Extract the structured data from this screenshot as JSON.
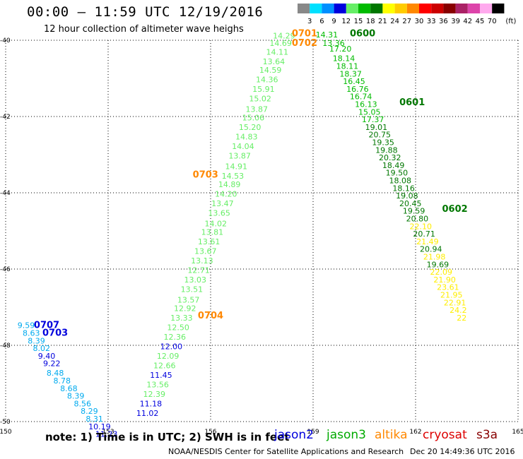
{
  "header": {
    "title": "00:00 – 11:59 UTC 12/19/2016",
    "subtitle": "12 hour collection of altimeter wave heighs"
  },
  "legend": {
    "unit": "(ft)",
    "bins": [
      {
        "label": "3",
        "color": "#888888"
      },
      {
        "label": "6",
        "color": "#00e0ff"
      },
      {
        "label": "9",
        "color": "#0090ff"
      },
      {
        "label": "12",
        "color": "#0000dd"
      },
      {
        "label": "15",
        "color": "#66ee66"
      },
      {
        "label": "18",
        "color": "#00bb00"
      },
      {
        "label": "21",
        "color": "#007700"
      },
      {
        "label": "24",
        "color": "#ffff00"
      },
      {
        "label": "27",
        "color": "#ffcc00"
      },
      {
        "label": "30",
        "color": "#ff8800"
      },
      {
        "label": "33",
        "color": "#ff0000"
      },
      {
        "label": "36",
        "color": "#cc0000"
      },
      {
        "label": "39",
        "color": "#880000"
      },
      {
        "label": "42",
        "color": "#aa2266"
      },
      {
        "label": "45",
        "color": "#dd44aa"
      },
      {
        "label": "70",
        "color": "#ffaaee"
      },
      {
        "label": "",
        "color": "#000000"
      }
    ]
  },
  "chart_data": {
    "type": "scatter",
    "xlim": [
      150,
      165
    ],
    "ylim": [
      -50,
      -40
    ],
    "xticks": [
      "150",
      "153",
      "156",
      "159",
      "162",
      "165"
    ],
    "yticks": [
      "-40",
      "-42",
      "-44",
      "-46",
      "-48",
      "-50"
    ],
    "grid": true,
    "time_labels": [
      {
        "text": "0701",
        "x": 158.75,
        "y": -39.9,
        "color": "#ff8800"
      },
      {
        "text": "0702",
        "x": 158.75,
        "y": -40.15,
        "color": "#ff8800"
      },
      {
        "text": "0703",
        "x": 155.85,
        "y": -43.6,
        "color": "#ff8800"
      },
      {
        "text": "0704",
        "x": 156.0,
        "y": -47.3,
        "color": "#ff8800"
      },
      {
        "text": "0600",
        "x": 160.45,
        "y": -39.9,
        "color": "#007700"
      },
      {
        "text": "0601",
        "x": 161.9,
        "y": -41.7,
        "color": "#007700"
      },
      {
        "text": "0602",
        "x": 163.15,
        "y": -44.5,
        "color": "#007700"
      },
      {
        "text": "0707",
        "x": 151.2,
        "y": -47.55,
        "color": "#0000dd"
      },
      {
        "text": "0703",
        "x": 151.45,
        "y": -47.75,
        "color": "#0000dd"
      }
    ],
    "series": [
      {
        "name": "jason3_west",
        "color": "#66ee66",
        "points": [
          {
            "x": 158.15,
            "y": -39.95,
            "v": "14.29"
          },
          {
            "x": 158.05,
            "y": -40.15,
            "v": "14.69"
          },
          {
            "x": 157.95,
            "y": -40.38,
            "v": "14.11"
          },
          {
            "x": 157.85,
            "y": -40.63,
            "v": "13.64"
          },
          {
            "x": 157.75,
            "y": -40.85,
            "v": "14.59"
          },
          {
            "x": 157.65,
            "y": -41.1,
            "v": "14.36"
          },
          {
            "x": 157.55,
            "y": -41.35,
            "v": "15.91"
          },
          {
            "x": 157.45,
            "y": -41.6,
            "v": "15.02"
          },
          {
            "x": 157.35,
            "y": -41.88,
            "v": "13.87"
          },
          {
            "x": 157.25,
            "y": -42.1,
            "v": "15.06"
          },
          {
            "x": 157.15,
            "y": -42.35,
            "v": "15.20"
          },
          {
            "x": 157.05,
            "y": -42.6,
            "v": "14.83"
          },
          {
            "x": 156.95,
            "y": -42.85,
            "v": "14.04"
          },
          {
            "x": 156.85,
            "y": -43.1,
            "v": "13.87"
          },
          {
            "x": 156.75,
            "y": -43.38,
            "v": "14.91"
          },
          {
            "x": 156.65,
            "y": -43.63,
            "v": "14.53"
          },
          {
            "x": 156.55,
            "y": -43.85,
            "v": "14.89"
          },
          {
            "x": 156.45,
            "y": -44.1,
            "v": "14.20"
          },
          {
            "x": 156.35,
            "y": -44.35,
            "v": "13.47"
          },
          {
            "x": 156.25,
            "y": -44.6,
            "v": "13.65"
          },
          {
            "x": 156.15,
            "y": -44.88,
            "v": "14.02"
          },
          {
            "x": 156.05,
            "y": -45.1,
            "v": "13.81"
          },
          {
            "x": 155.95,
            "y": -45.35,
            "v": "13.61"
          },
          {
            "x": 155.85,
            "y": -45.6,
            "v": "13.67"
          },
          {
            "x": 155.75,
            "y": -45.85,
            "v": "13.13"
          },
          {
            "x": 155.65,
            "y": -46.1,
            "v": "12.71"
          },
          {
            "x": 155.55,
            "y": -46.35,
            "v": "13.03"
          },
          {
            "x": 155.45,
            "y": -46.6,
            "v": "13.51"
          },
          {
            "x": 155.35,
            "y": -46.88,
            "v": "13.57"
          },
          {
            "x": 155.25,
            "y": -47.1,
            "v": "12.92"
          },
          {
            "x": 155.15,
            "y": -47.35,
            "v": "13.33"
          },
          {
            "x": 155.05,
            "y": -47.6,
            "v": "12.50"
          },
          {
            "x": 154.95,
            "y": -47.85,
            "v": "12.36"
          },
          {
            "x": 154.75,
            "y": -48.35,
            "v": "12.09"
          },
          {
            "x": 154.65,
            "y": -48.6,
            "v": "12.66"
          },
          {
            "x": 154.45,
            "y": -49.1,
            "v": "13.56"
          },
          {
            "x": 154.35,
            "y": -49.35,
            "v": "12.39"
          }
        ]
      },
      {
        "name": "jason2_west",
        "color": "#0000dd",
        "points": [
          {
            "x": 154.85,
            "y": -48.1,
            "v": "12.00"
          },
          {
            "x": 154.55,
            "y": -48.85,
            "v": "11.45"
          },
          {
            "x": 154.25,
            "y": -49.6,
            "v": "11.18"
          },
          {
            "x": 154.15,
            "y": -49.85,
            "v": "11.02"
          }
        ]
      },
      {
        "name": "jason3_east",
        "color": "#00bb00",
        "points": [
          {
            "x": 159.4,
            "y": -39.93,
            "v": "14.31"
          },
          {
            "x": 159.6,
            "y": -40.15,
            "v": "13.36"
          },
          {
            "x": 159.8,
            "y": -40.3,
            "v": "17.20"
          },
          {
            "x": 159.9,
            "y": -40.55,
            "v": "18.14"
          },
          {
            "x": 160.0,
            "y": -40.75,
            "v": "18.11"
          },
          {
            "x": 160.1,
            "y": -40.95,
            "v": "18.37"
          },
          {
            "x": 160.2,
            "y": -41.15,
            "v": "16.45"
          },
          {
            "x": 160.3,
            "y": -41.35,
            "v": "16.76"
          },
          {
            "x": 160.4,
            "y": -41.55,
            "v": "16.74"
          },
          {
            "x": 160.55,
            "y": -41.75,
            "v": "16.13"
          },
          {
            "x": 160.65,
            "y": -41.95,
            "v": "15.05"
          },
          {
            "x": 160.75,
            "y": -42.15,
            "v": "17.37"
          }
        ]
      },
      {
        "name": "jason3_east_dark",
        "color": "#007700",
        "points": [
          {
            "x": 160.85,
            "y": -42.35,
            "v": "19.01"
          },
          {
            "x": 160.95,
            "y": -42.55,
            "v": "20.75"
          },
          {
            "x": 161.05,
            "y": -42.75,
            "v": "19.35"
          },
          {
            "x": 161.15,
            "y": -42.95,
            "v": "19.88"
          },
          {
            "x": 161.25,
            "y": -43.15,
            "v": "20.32"
          },
          {
            "x": 161.35,
            "y": -43.35,
            "v": "18.49"
          },
          {
            "x": 161.45,
            "y": -43.55,
            "v": "19.50"
          },
          {
            "x": 161.55,
            "y": -43.75,
            "v": "18.08"
          },
          {
            "x": 161.65,
            "y": -43.95,
            "v": "18.16"
          },
          {
            "x": 161.75,
            "y": -44.15,
            "v": "19.08"
          },
          {
            "x": 161.85,
            "y": -44.35,
            "v": "20.45"
          },
          {
            "x": 161.95,
            "y": -44.55,
            "v": "19.59"
          },
          {
            "x": 162.05,
            "y": -44.75,
            "v": "20.80"
          },
          {
            "x": 162.25,
            "y": -45.15,
            "v": "20.71"
          },
          {
            "x": 162.45,
            "y": -45.55,
            "v": "20.94"
          },
          {
            "x": 162.65,
            "y": -45.95,
            "v": "19.69"
          }
        ]
      },
      {
        "name": "yellow_east",
        "color": "#ffee00",
        "points": [
          {
            "x": 162.15,
            "y": -44.95,
            "v": "22.10"
          },
          {
            "x": 162.35,
            "y": -45.35,
            "v": "21.49"
          },
          {
            "x": 162.55,
            "y": -45.75,
            "v": "21.98"
          },
          {
            "x": 162.75,
            "y": -46.15,
            "v": "22.09"
          },
          {
            "x": 162.85,
            "y": -46.35,
            "v": "21.90"
          },
          {
            "x": 162.95,
            "y": -46.55,
            "v": "23.61"
          },
          {
            "x": 163.05,
            "y": -46.75,
            "v": "21.95"
          },
          {
            "x": 163.15,
            "y": -46.95,
            "v": "22.91"
          },
          {
            "x": 163.25,
            "y": -47.15,
            "v": "24.2"
          },
          {
            "x": 163.35,
            "y": -47.35,
            "v": "22"
          }
        ]
      },
      {
        "name": "jason2_far_west",
        "color": "#00aaee",
        "points": [
          {
            "x": 150.6,
            "y": -47.55,
            "v": "9.59"
          },
          {
            "x": 150.75,
            "y": -47.75,
            "v": "8.63"
          },
          {
            "x": 150.9,
            "y": -47.95,
            "v": "8.39"
          },
          {
            "x": 151.05,
            "y": -48.15,
            "v": "8.02"
          },
          {
            "x": 151.45,
            "y": -48.8,
            "v": "8.48"
          },
          {
            "x": 151.65,
            "y": -49.0,
            "v": "8.78"
          },
          {
            "x": 151.85,
            "y": -49.2,
            "v": "8.68"
          },
          {
            "x": 152.05,
            "y": -49.4,
            "v": "8.39"
          },
          {
            "x": 152.25,
            "y": -49.6,
            "v": "8.56"
          },
          {
            "x": 152.45,
            "y": -49.8,
            "v": "8.29"
          },
          {
            "x": 152.6,
            "y": -50.0,
            "v": "8.31"
          }
        ]
      },
      {
        "name": "jason2_far_west_dark",
        "color": "#0000dd",
        "points": [
          {
            "x": 151.2,
            "y": -48.35,
            "v": "9.40"
          },
          {
            "x": 151.35,
            "y": -48.55,
            "v": "9.22"
          },
          {
            "x": 152.75,
            "y": -50.2,
            "v": "10.19"
          },
          {
            "x": 152.95,
            "y": -50.4,
            "v": "11.23"
          }
        ]
      }
    ]
  },
  "notes": {
    "note": "note: 1) Time is in UTC; 2) SWH is in feet",
    "satellites": [
      {
        "name": "jason2",
        "color": "#0000dd"
      },
      {
        "name": "jason3",
        "color": "#00aa00"
      },
      {
        "name": "altika",
        "color": "#ff8800"
      },
      {
        "name": "cryosat",
        "color": "#dd0000"
      },
      {
        "name": "s3a",
        "color": "#880000"
      }
    ]
  },
  "footer": {
    "credit": "NOAA/NESDIS Center for Satellite Applications and Research",
    "timestamp": "Dec 20 14:49:36 UTC 2016"
  }
}
